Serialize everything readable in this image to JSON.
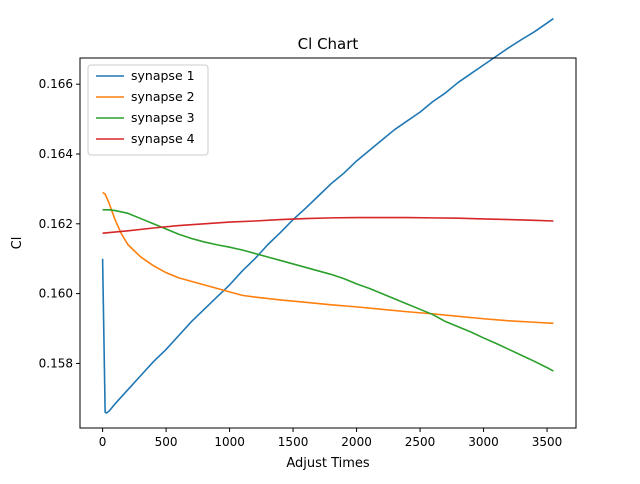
{
  "chart_data": {
    "type": "line",
    "title": "Cl Chart",
    "xlabel": "Adjust Times",
    "ylabel": "Cl",
    "xlim": [
      -178,
      3728
    ],
    "ylim": [
      0.15615,
      0.16675
    ],
    "x_ticks": [
      0,
      500,
      1000,
      1500,
      2000,
      2500,
      3000,
      3500
    ],
    "y_ticks": [
      0.158,
      0.16,
      0.162,
      0.164,
      0.166
    ],
    "y_tick_labels": [
      "0.158",
      "0.160",
      "0.162",
      "0.164",
      "0.166"
    ],
    "grid": false,
    "legend_position": "upper-left",
    "series": [
      {
        "name": "synapse 1",
        "color": "#1f77b4",
        "x": [
          0,
          20,
          30,
          50,
          100,
          200,
          300,
          400,
          500,
          600,
          700,
          800,
          900,
          1000,
          1100,
          1200,
          1300,
          1400,
          1500,
          1600,
          1700,
          1800,
          1900,
          2000,
          2100,
          2200,
          2300,
          2400,
          2500,
          2600,
          2700,
          2800,
          2900,
          3000,
          3100,
          3200,
          3300,
          3400,
          3500,
          3550
        ],
        "y": [
          0.161,
          0.1566,
          0.15658,
          0.15663,
          0.15685,
          0.15725,
          0.15765,
          0.15805,
          0.1584,
          0.1588,
          0.1592,
          0.15955,
          0.1599,
          0.16025,
          0.16065,
          0.161,
          0.1614,
          0.16175,
          0.16212,
          0.16245,
          0.1628,
          0.16315,
          0.16345,
          0.1638,
          0.1641,
          0.1644,
          0.1647,
          0.16495,
          0.1652,
          0.1655,
          0.16575,
          0.16605,
          0.1663,
          0.16655,
          0.1668,
          0.16705,
          0.16728,
          0.1675,
          0.16775,
          0.16788
        ]
      },
      {
        "name": "synapse 2",
        "color": "#ff7f0e",
        "x": [
          0,
          20,
          50,
          100,
          150,
          200,
          300,
          400,
          500,
          600,
          700,
          800,
          900,
          1000,
          1100,
          1200,
          1400,
          1600,
          1800,
          2000,
          2200,
          2400,
          2600,
          2800,
          3000,
          3200,
          3400,
          3550
        ],
        "y": [
          0.1629,
          0.16285,
          0.1626,
          0.1621,
          0.1617,
          0.1614,
          0.16105,
          0.1608,
          0.1606,
          0.16045,
          0.16035,
          0.16025,
          0.16015,
          0.16005,
          0.15995,
          0.1599,
          0.15982,
          0.15975,
          0.15968,
          0.15962,
          0.15955,
          0.15948,
          0.15942,
          0.15935,
          0.15928,
          0.15922,
          0.15918,
          0.15915
        ]
      },
      {
        "name": "synapse 3",
        "color": "#2ca02c",
        "x": [
          0,
          50,
          100,
          200,
          300,
          400,
          500,
          600,
          700,
          800,
          900,
          1000,
          1100,
          1200,
          1300,
          1400,
          1500,
          1600,
          1700,
          1800,
          1900,
          2000,
          2100,
          2200,
          2300,
          2400,
          2500,
          2600,
          2700,
          2800,
          2900,
          3000,
          3100,
          3200,
          3300,
          3400,
          3500,
          3550
        ],
        "y": [
          0.1624,
          0.1624,
          0.16238,
          0.1623,
          0.16215,
          0.162,
          0.16185,
          0.1617,
          0.16158,
          0.16148,
          0.1614,
          0.16133,
          0.16125,
          0.16115,
          0.16105,
          0.16095,
          0.16085,
          0.16075,
          0.16065,
          0.16055,
          0.16043,
          0.16028,
          0.16015,
          0.16,
          0.15985,
          0.1597,
          0.15955,
          0.1594,
          0.1592,
          0.15905,
          0.1589,
          0.15873,
          0.15857,
          0.1584,
          0.15823,
          0.15806,
          0.15788,
          0.15778
        ]
      },
      {
        "name": "synapse 4",
        "color": "#d62728",
        "x": [
          0,
          200,
          400,
          600,
          800,
          1000,
          1200,
          1400,
          1600,
          1800,
          2000,
          2200,
          2400,
          2600,
          2800,
          3000,
          3200,
          3400,
          3550
        ],
        "y": [
          0.16173,
          0.1618,
          0.16188,
          0.16195,
          0.162,
          0.16205,
          0.16208,
          0.16212,
          0.16215,
          0.16217,
          0.16218,
          0.16218,
          0.16218,
          0.16217,
          0.16216,
          0.16214,
          0.16212,
          0.1621,
          0.16208
        ]
      }
    ]
  }
}
